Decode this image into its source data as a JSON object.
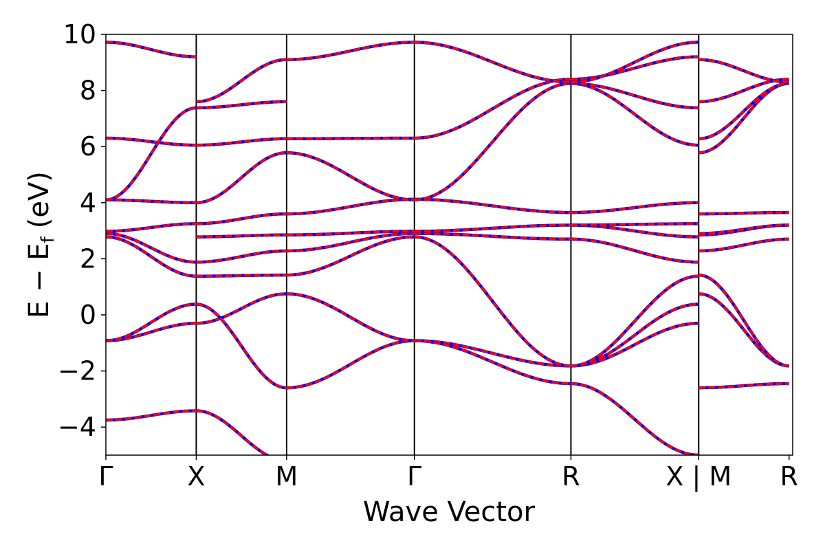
{
  "chart_data": {
    "type": "line",
    "title": "",
    "xlabel": "Wave Vector",
    "ylabel": "E − E_f (eV)",
    "ylabel_parts": {
      "main": "E − E",
      "sub": "f",
      "unit": "(eV)"
    },
    "ylim": [
      -5,
      10
    ],
    "yticks": [
      -4,
      -2,
      0,
      2,
      4,
      6,
      8,
      10
    ],
    "ytick_labels": [
      "−4",
      "−2",
      "0",
      "2",
      "4",
      "6",
      "8",
      "10"
    ],
    "xlim": [
      0,
      7.6
    ],
    "kpoints": [
      {
        "label": "Γ",
        "x": 0.0
      },
      {
        "label": "X",
        "x": 1.0
      },
      {
        "label": "M",
        "x": 2.0
      },
      {
        "label": "Γ",
        "x": 3.414
      },
      {
        "label": "R",
        "x": 5.146
      },
      {
        "label": "X | M",
        "x": 6.56
      },
      {
        "label": "R",
        "x": 7.56
      }
    ],
    "grid": false,
    "legend": "none",
    "colors": {
      "band_primary": "#ff0000",
      "band_secondary": "#0000ff",
      "kline": "#000000"
    },
    "segments": [
      {
        "from": "Γ",
        "to": "X",
        "x": [
          0.0,
          1.0
        ],
        "bands": [
          [
            -3.75,
            -3.42
          ],
          [
            -0.92,
            -0.3
          ],
          [
            -0.92,
            0.38
          ],
          [
            2.78,
            1.38
          ],
          [
            2.9,
            1.88
          ],
          [
            2.98,
            3.25
          ],
          [
            4.1,
            4.0
          ],
          [
            6.3,
            6.05
          ],
          [
            4.1,
            7.38
          ],
          [
            9.72,
            9.2
          ]
        ]
      },
      {
        "from": "X",
        "to": "M",
        "x": [
          1.0,
          2.0
        ],
        "bands": [
          [
            -3.42,
            -5.2
          ],
          [
            -0.3,
            0.75
          ],
          [
            0.38,
            -2.6
          ],
          [
            1.38,
            1.42
          ],
          [
            1.88,
            2.28
          ],
          [
            2.78,
            2.85
          ],
          [
            3.25,
            3.6
          ],
          [
            4.0,
            5.78
          ],
          [
            6.05,
            6.28
          ],
          [
            7.38,
            7.6
          ],
          [
            7.6,
            9.1
          ]
        ]
      },
      {
        "from": "M",
        "to": "Γ",
        "x": [
          2.0,
          3.414
        ],
        "bands": [
          [
            -2.6,
            -0.92
          ],
          [
            0.75,
            -0.92
          ],
          [
            1.42,
            2.78
          ],
          [
            2.28,
            2.9
          ],
          [
            2.85,
            2.98
          ],
          [
            3.6,
            4.12
          ],
          [
            5.78,
            4.1
          ],
          [
            6.28,
            6.3
          ],
          [
            9.1,
            9.72
          ]
        ]
      },
      {
        "from": "Γ",
        "to": "R",
        "x": [
          3.414,
          5.146
        ],
        "bands": [
          [
            -0.92,
            -1.82
          ],
          [
            -0.92,
            -2.45
          ],
          [
            2.78,
            -1.82
          ],
          [
            2.9,
            2.7
          ],
          [
            2.98,
            3.2
          ],
          [
            4.12,
            3.65
          ],
          [
            4.1,
            8.25
          ],
          [
            6.3,
            8.4
          ],
          [
            9.72,
            8.3
          ]
        ]
      },
      {
        "from": "R",
        "to": "X",
        "x": [
          5.146,
          6.56
        ],
        "bands": [
          [
            -2.45,
            -5.0
          ],
          [
            -1.82,
            -0.3
          ],
          [
            -1.82,
            0.38
          ],
          [
            -1.82,
            1.38
          ],
          [
            2.7,
            1.88
          ],
          [
            3.2,
            2.78
          ],
          [
            3.2,
            3.25
          ],
          [
            3.65,
            4.0
          ],
          [
            8.25,
            6.05
          ],
          [
            8.25,
            7.38
          ],
          [
            8.4,
            9.2
          ],
          [
            8.3,
            9.72
          ]
        ]
      },
      {
        "from": "M",
        "to": "R",
        "x": [
          6.56,
          7.56
        ],
        "bands": [
          [
            -2.6,
            -2.45
          ],
          [
            0.75,
            -1.82
          ],
          [
            1.42,
            -1.82
          ],
          [
            2.28,
            2.7
          ],
          [
            2.85,
            3.2
          ],
          [
            2.9,
            3.2
          ],
          [
            3.6,
            3.65
          ],
          [
            5.78,
            8.25
          ],
          [
            6.28,
            8.25
          ],
          [
            7.6,
            8.4
          ],
          [
            9.1,
            8.3
          ]
        ]
      }
    ]
  }
}
